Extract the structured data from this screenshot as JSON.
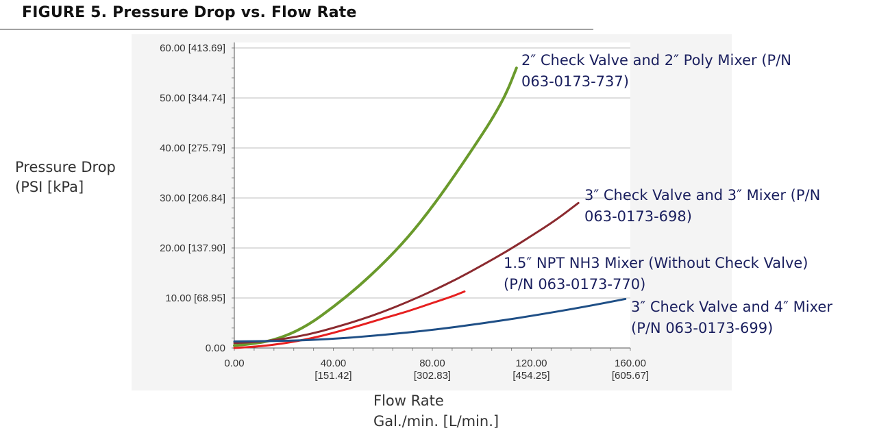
{
  "figure_title": "FIGURE 5.  Pressure Drop vs. Flow Rate",
  "y_axis_label": [
    "Pressure Drop",
    "(PSI [kPa]"
  ],
  "x_axis_label": [
    "Flow Rate",
    "Gal./min. [L/min.]"
  ],
  "chart_data": {
    "type": "line",
    "title": "Pressure Drop vs. Flow Rate",
    "xlabel": "Flow Rate Gal./min. [L/min.]",
    "ylabel": "Pressure Drop (PSI [kPa]",
    "xlim": [
      0,
      160
    ],
    "ylim": [
      0,
      60
    ],
    "grid": true,
    "x_ticks": [
      {
        "value": 0,
        "label": [
          "0.00"
        ]
      },
      {
        "value": 40,
        "label": [
          "40.00",
          "[151.42]"
        ]
      },
      {
        "value": 80,
        "label": [
          "80.00",
          "[302.83]"
        ]
      },
      {
        "value": 120,
        "label": [
          "120.00",
          "[454.25]"
        ]
      },
      {
        "value": 160,
        "label": [
          "160.00",
          "[605.67]"
        ]
      }
    ],
    "y_ticks": [
      {
        "value": 0,
        "label": "0.00"
      },
      {
        "value": 10,
        "label": "10.00 [68.95]"
      },
      {
        "value": 20,
        "label": "20.00 [137.90]"
      },
      {
        "value": 30,
        "label": "30.00 [206.84]"
      },
      {
        "value": 40,
        "label": "40.00 [275.79]"
      },
      {
        "value": 50,
        "label": "50.00 [344.74]"
      },
      {
        "value": 60,
        "label": "60.00 [413.69]"
      }
    ],
    "series": [
      {
        "name": "2″ Check Valve and 2″ Poly Mixer (P/N 063-0173-737)",
        "label_lines": [
          "2″ Check Valve and 2″ Poly Mixer (P/N",
          "063-0173-737)"
        ],
        "color": "#6a9a2c",
        "x": [
          0,
          10,
          20,
          30,
          40,
          50,
          60,
          70,
          80,
          90,
          100,
          105,
          110,
          114
        ],
        "y": [
          0.5,
          0.9,
          2.2,
          4.6,
          8.2,
          12.2,
          16.8,
          22.0,
          28.2,
          35.2,
          42.6,
          46.5,
          51.0,
          56.0
        ]
      },
      {
        "name": "3″ Check Valve and 3″ Mixer (P/N 063-0173-698)",
        "label_lines": [
          "3″ Check Valve and 3″ Mixer (P/N",
          "063-0173-698)"
        ],
        "color": "#8b2a2f",
        "x": [
          0,
          10,
          20,
          30,
          40,
          50,
          60,
          70,
          80,
          90,
          100,
          110,
          120,
          130,
          139
        ],
        "y": [
          1.0,
          1.2,
          1.8,
          2.7,
          4.0,
          5.5,
          7.2,
          9.2,
          11.4,
          13.8,
          16.5,
          19.3,
          22.4,
          25.6,
          29.0
        ]
      },
      {
        "name": "1.5″ NPT NH3 Mixer (Without Check Valve) (P/N 063-0173-770)",
        "label_lines": [
          "1.5″ NPT NH3 Mixer (Without Check Valve)",
          "(P/N 063-0173-770)"
        ],
        "color": "#e62020",
        "x": [
          0,
          10,
          20,
          30,
          40,
          50,
          60,
          70,
          80,
          88,
          93
        ],
        "y": [
          0.0,
          0.3,
          0.9,
          1.8,
          3.0,
          4.4,
          5.9,
          7.3,
          9.0,
          10.3,
          11.3
        ]
      },
      {
        "name": "3″ Check Valve and 4″ Mixer (P/N 063-0173-699)",
        "label_lines": [
          "3″ Check Valve and 4″ Mixer",
          "(P/N 063-0173-699)"
        ],
        "color": "#1f4f86",
        "x": [
          0,
          20,
          40,
          60,
          80,
          100,
          120,
          140,
          158
        ],
        "y": [
          1.3,
          1.4,
          1.8,
          2.6,
          3.6,
          4.9,
          6.4,
          8.1,
          9.8
        ]
      }
    ]
  }
}
